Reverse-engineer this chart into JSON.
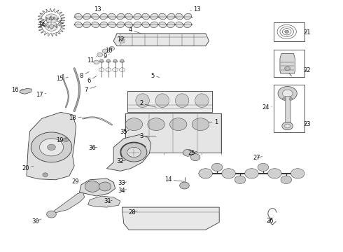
{
  "bg_color": "#f5f5f5",
  "line_color": "#3a3a3a",
  "label_color": "#111111",
  "label_fontsize": 6.0,
  "fig_width": 4.9,
  "fig_height": 3.6,
  "dpi": 100,
  "label_positions": {
    "1": [
      0.62,
      0.515,
      "right"
    ],
    "2": [
      0.415,
      0.535,
      "left"
    ],
    "3": [
      0.415,
      0.455,
      "left"
    ],
    "4": [
      0.38,
      0.885,
      "left"
    ],
    "5": [
      0.45,
      0.71,
      "left"
    ],
    "6": [
      0.26,
      0.68,
      "left"
    ],
    "7": [
      0.255,
      0.64,
      "left"
    ],
    "8": [
      0.24,
      0.7,
      "left"
    ],
    "9": [
      0.31,
      0.775,
      "left"
    ],
    "10": [
      0.32,
      0.8,
      "left"
    ],
    "11": [
      0.265,
      0.76,
      "left"
    ],
    "12": [
      0.355,
      0.84,
      "left"
    ],
    "13": [
      0.285,
      0.965,
      "left"
    ],
    "14_top": [
      0.12,
      0.905,
      "left"
    ],
    "14_bot": [
      0.48,
      0.285,
      "left"
    ],
    "15": [
      0.175,
      0.685,
      "left"
    ],
    "16": [
      0.045,
      0.645,
      "left"
    ],
    "17": [
      0.115,
      0.625,
      "left"
    ],
    "18": [
      0.215,
      0.53,
      "right"
    ],
    "19": [
      0.175,
      0.44,
      "right"
    ],
    "20": [
      0.075,
      0.33,
      "left"
    ],
    "21": [
      0.845,
      0.87,
      "right"
    ],
    "22": [
      0.845,
      0.72,
      "right"
    ],
    "23": [
      0.845,
      0.505,
      "right"
    ],
    "24": [
      0.78,
      0.57,
      "left"
    ],
    "25": [
      0.56,
      0.39,
      "left"
    ],
    "26": [
      0.79,
      0.12,
      "left"
    ],
    "27": [
      0.75,
      0.37,
      "left"
    ],
    "28": [
      0.39,
      0.155,
      "left"
    ],
    "29": [
      0.22,
      0.275,
      "left"
    ],
    "30": [
      0.105,
      0.115,
      "left"
    ],
    "31": [
      0.315,
      0.195,
      "right"
    ],
    "32": [
      0.35,
      0.355,
      "right"
    ],
    "33": [
      0.355,
      0.27,
      "right"
    ],
    "34": [
      0.355,
      0.24,
      "right"
    ],
    "35": [
      0.365,
      0.475,
      "right"
    ],
    "36": [
      0.27,
      0.41,
      "left"
    ]
  }
}
